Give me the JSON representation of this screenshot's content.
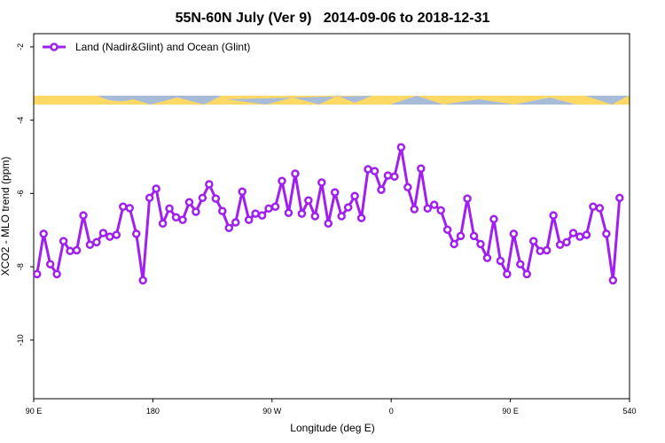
{
  "chart_data": {
    "type": "line",
    "title": "55N-60N July (Ver 9)   2014-09-06 to 2018-12-31",
    "x_label": "Longitude (deg E)",
    "y_label": "XCO2 - MLO trend (ppm)",
    "xlim": [
      90,
      540
    ],
    "xticks": [
      {
        "value": 90,
        "label": "90 E"
      },
      180,
      {
        "value": 270,
        "label": "90 W"
      },
      {
        "value": 360,
        "label": "0"
      },
      {
        "value": 450,
        "label": "90 E"
      },
      540
    ],
    "ylim": [
      -11.6,
      -1.64
    ],
    "yticks": [
      -2,
      -4,
      -6,
      -8,
      -10
    ],
    "legend": "upper left",
    "x": [
      92.5,
      97.5,
      102.5,
      107.5,
      112.5,
      117.5,
      122.5,
      127.5,
      132.5,
      137.5,
      142.5,
      147.5,
      152.5,
      157.5,
      162.5,
      167.5,
      172.5,
      177.5,
      182.5,
      187.5,
      192.5,
      197.5,
      202.5,
      207.5,
      212.5,
      217.5,
      222.5,
      227.5,
      232.5,
      237.5,
      242.5,
      247.5,
      252.5,
      257.5,
      262.5,
      267.5,
      272.5,
      277.5,
      282.5,
      287.5,
      292.5,
      297.5,
      302.5,
      307.5,
      312.5,
      317.5,
      322.5,
      327.5,
      332.5,
      337.5,
      342.5,
      347.5,
      352.5,
      357.5,
      362.5,
      367.5,
      372.5,
      377.5,
      382.5,
      387.5,
      392.5,
      397.5,
      402.5,
      407.5,
      412.5,
      417.5,
      422.5,
      427.5,
      432.5,
      437.5,
      442.5,
      447.5,
      452.5,
      457.5,
      462.5,
      467.5,
      472.5,
      477.5,
      482.5,
      487.5,
      492.5,
      497.5,
      502.5,
      507.5,
      512.5,
      517.5,
      522.5,
      527.5,
      532.5
    ],
    "series": [
      {
        "name": "Land (Nadir&Glint) and Ocean (Glint)",
        "color": "#a020f0",
        "values": [
          -8.2,
          -7.1,
          -7.93,
          -8.2,
          -7.3,
          -7.57,
          -7.55,
          -6.6,
          -7.4,
          -7.33,
          -7.08,
          -7.18,
          -7.13,
          -6.36,
          -6.4,
          -7.1,
          -8.37,
          -6.12,
          -5.87,
          -6.82,
          -6.41,
          -6.65,
          -6.72,
          -6.24,
          -6.5,
          -6.12,
          -5.75,
          -6.14,
          -6.48,
          -6.94,
          -6.79,
          -5.95,
          -6.72,
          -6.55,
          -6.6,
          -6.41,
          -6.36,
          -5.66,
          -6.53,
          -5.46,
          -6.55,
          -6.19,
          -6.62,
          -5.7,
          -6.82,
          -5.97,
          -6.62,
          -6.38,
          -6.07,
          -6.67,
          -5.34,
          -5.39,
          -5.9,
          -5.51,
          -5.54,
          -4.74,
          -5.83,
          -6.43,
          -5.32,
          -6.41,
          -6.31,
          -6.46,
          -6.99,
          -7.38,
          -7.16,
          -6.14,
          -7.16,
          -7.38,
          -7.76,
          -6.7,
          -7.84,
          -8.2,
          -7.1,
          -7.93,
          -8.2,
          -7.3,
          -7.57,
          -7.55,
          -6.6,
          -7.4,
          -7.33,
          -7.08,
          -7.18,
          -7.13,
          -6.36,
          -6.4,
          -7.1,
          -8.37,
          -6.12
        ]
      }
    ]
  }
}
